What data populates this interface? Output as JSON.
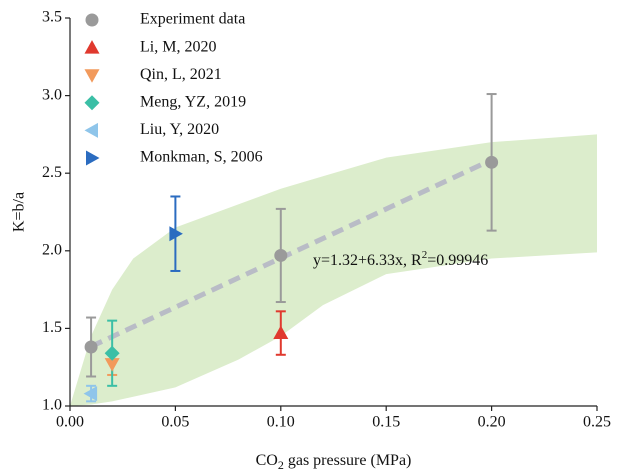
{
  "chart_data": {
    "type": "scatter",
    "xlabel_parts": [
      "CO",
      "2",
      " gas pressure (MPa)"
    ],
    "ylabel": "K=b/a",
    "xlim": [
      0,
      0.25
    ],
    "ylim": [
      1.0,
      3.5
    ],
    "xticks": [
      {
        "value": 0,
        "label": "0.00"
      },
      {
        "value": 0.05,
        "label": "0.05"
      },
      {
        "value": 0.1,
        "label": "0.10"
      },
      {
        "value": 0.15,
        "label": "0.15"
      },
      {
        "value": 0.2,
        "label": "0.20"
      },
      {
        "value": 0.25,
        "label": "0.25"
      }
    ],
    "yticks": [
      {
        "value": 1,
        "label": "1.0"
      },
      {
        "value": 1.5,
        "label": "1.5"
      },
      {
        "value": 2,
        "label": "2.0"
      },
      {
        "value": 2.5,
        "label": "2.5"
      },
      {
        "value": 3,
        "label": "3.0"
      },
      {
        "value": 3.5,
        "label": "3.5"
      }
    ],
    "legend": "upper left",
    "band": {
      "color": "#dcedcc",
      "x": [
        0,
        0.01,
        0.02,
        0.03,
        0.05,
        0.08,
        0.1,
        0.12,
        0.15,
        0.2,
        0.25
      ],
      "upper": [
        1.0,
        1.45,
        1.75,
        1.95,
        2.15,
        2.3,
        2.4,
        2.48,
        2.6,
        2.7,
        2.75
      ],
      "lower": [
        1.0,
        1.01,
        1.03,
        1.06,
        1.12,
        1.3,
        1.45,
        1.65,
        1.85,
        1.95,
        1.99
      ]
    },
    "fit": {
      "intercept": 1.32,
      "slope": 6.33,
      "x_range": [
        0.01,
        0.2
      ],
      "color": "#b9bcc6",
      "label_parts": [
        "y=1.32+6.33x, R",
        "2",
        "=0.99946"
      ]
    },
    "series": [
      {
        "name": "Experiment data",
        "marker": "circle",
        "color": "#9a9a9a",
        "x": [
          0.01,
          0.1,
          0.2
        ],
        "values": [
          1.38,
          1.97,
          2.57
        ],
        "errors": [
          0.19,
          0.3,
          0.44
        ]
      },
      {
        "name": "Li, M, 2020",
        "marker": "triangle-up",
        "color": "#e0392e",
        "x": [
          0.1
        ],
        "values": [
          1.47
        ],
        "errors": [
          0.14
        ]
      },
      {
        "name": "Qin, L, 2021",
        "marker": "triangle-down",
        "color": "#f29a5c",
        "x": [
          0.02
        ],
        "values": [
          1.27
        ],
        "errors": [
          0.07
        ]
      },
      {
        "name": "Meng, YZ, 2019",
        "marker": "diamond",
        "color": "#3bbfa6",
        "x": [
          0.02
        ],
        "values": [
          1.34
        ],
        "errors": [
          0.21
        ]
      },
      {
        "name": "Liu, Y, 2020",
        "marker": "triangle-left",
        "color": "#8fc5ea",
        "x": [
          0.01
        ],
        "values": [
          1.08
        ],
        "errors": [
          0.05
        ]
      },
      {
        "name": "Monkman, S, 2006",
        "marker": "triangle-right",
        "color": "#2b6cc0",
        "x": [
          0.05
        ],
        "values": [
          2.11
        ],
        "errors": [
          0.24
        ]
      }
    ]
  }
}
